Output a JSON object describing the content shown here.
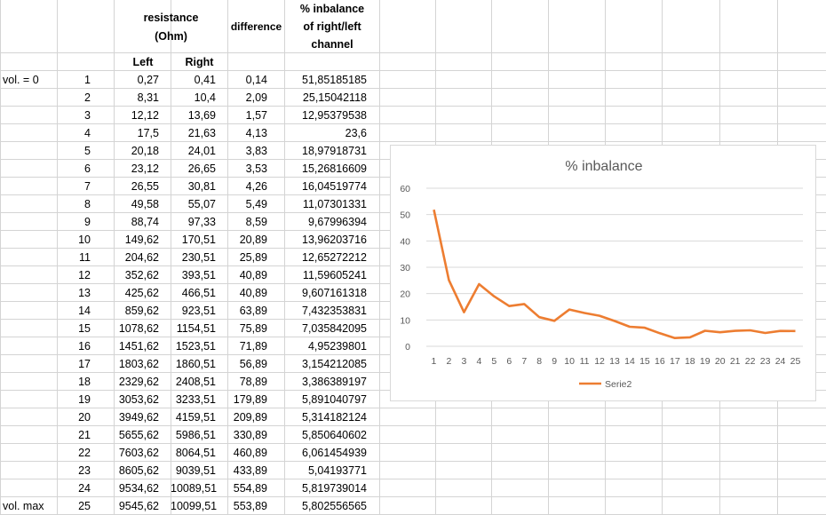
{
  "sheet": {
    "header": {
      "resistance": "resistance",
      "ohm": "(Ohm)",
      "difference": "difference",
      "inbalance1": "% inbalance",
      "inbalance2": "of right/left",
      "inbalance3": "channel",
      "left": "Left",
      "right": "Right"
    },
    "rows": [
      {
        "label": "vol. = 0",
        "n": "1",
        "left": "0,27",
        "right": "0,41",
        "diff": "0,14",
        "pct": "51,85185185"
      },
      {
        "label": "",
        "n": "2",
        "left": "8,31",
        "right": "10,4",
        "diff": "2,09",
        "pct": "25,15042118"
      },
      {
        "label": "",
        "n": "3",
        "left": "12,12",
        "right": "13,69",
        "diff": "1,57",
        "pct": "12,95379538"
      },
      {
        "label": "",
        "n": "4",
        "left": "17,5",
        "right": "21,63",
        "diff": "4,13",
        "pct": "23,6"
      },
      {
        "label": "",
        "n": "5",
        "left": "20,18",
        "right": "24,01",
        "diff": "3,83",
        "pct": "18,97918731"
      },
      {
        "label": "",
        "n": "6",
        "left": "23,12",
        "right": "26,65",
        "diff": "3,53",
        "pct": "15,26816609"
      },
      {
        "label": "",
        "n": "7",
        "left": "26,55",
        "right": "30,81",
        "diff": "4,26",
        "pct": "16,04519774"
      },
      {
        "label": "",
        "n": "8",
        "left": "49,58",
        "right": "55,07",
        "diff": "5,49",
        "pct": "11,07301331"
      },
      {
        "label": "",
        "n": "9",
        "left": "88,74",
        "right": "97,33",
        "diff": "8,59",
        "pct": "9,67996394"
      },
      {
        "label": "",
        "n": "10",
        "left": "149,62",
        "right": "170,51",
        "diff": "20,89",
        "pct": "13,96203716"
      },
      {
        "label": "",
        "n": "11",
        "left": "204,62",
        "right": "230,51",
        "diff": "25,89",
        "pct": "12,65272212"
      },
      {
        "label": "",
        "n": "12",
        "left": "352,62",
        "right": "393,51",
        "diff": "40,89",
        "pct": "11,59605241"
      },
      {
        "label": "",
        "n": "13",
        "left": "425,62",
        "right": "466,51",
        "diff": "40,89",
        "pct": "9,607161318"
      },
      {
        "label": "",
        "n": "14",
        "left": "859,62",
        "right": "923,51",
        "diff": "63,89",
        "pct": "7,432353831"
      },
      {
        "label": "",
        "n": "15",
        "left": "1078,62",
        "right": "1154,51",
        "diff": "75,89",
        "pct": "7,035842095"
      },
      {
        "label": "",
        "n": "16",
        "left": "1451,62",
        "right": "1523,51",
        "diff": "71,89",
        "pct": "4,95239801"
      },
      {
        "label": "",
        "n": "17",
        "left": "1803,62",
        "right": "1860,51",
        "diff": "56,89",
        "pct": "3,154212085"
      },
      {
        "label": "",
        "n": "18",
        "left": "2329,62",
        "right": "2408,51",
        "diff": "78,89",
        "pct": "3,386389197"
      },
      {
        "label": "",
        "n": "19",
        "left": "3053,62",
        "right": "3233,51",
        "diff": "179,89",
        "pct": "5,891040797"
      },
      {
        "label": "",
        "n": "20",
        "left": "3949,62",
        "right": "4159,51",
        "diff": "209,89",
        "pct": "5,314182124"
      },
      {
        "label": "",
        "n": "21",
        "left": "5655,62",
        "right": "5986,51",
        "diff": "330,89",
        "pct": "5,850640602"
      },
      {
        "label": "",
        "n": "22",
        "left": "7603,62",
        "right": "8064,51",
        "diff": "460,89",
        "pct": "6,061454939"
      },
      {
        "label": "",
        "n": "23",
        "left": "8605,62",
        "right": "9039,51",
        "diff": "433,89",
        "pct": "5,04193771"
      },
      {
        "label": "",
        "n": "24",
        "left": "9534,62",
        "right": "10089,51",
        "diff": "554,89",
        "pct": "5,819739014"
      },
      {
        "label": "vol. max",
        "n": "25",
        "left": "9545,62",
        "right": "10099,51",
        "diff": "553,89",
        "pct": "5,802556565"
      }
    ]
  },
  "chart_data": {
    "type": "line",
    "title": "% inbalance",
    "x": [
      1,
      2,
      3,
      4,
      5,
      6,
      7,
      8,
      9,
      10,
      11,
      12,
      13,
      14,
      15,
      16,
      17,
      18,
      19,
      20,
      21,
      22,
      23,
      24,
      25
    ],
    "series": [
      {
        "name": "Serie2",
        "values": [
          51.85,
          25.15,
          12.95,
          23.6,
          18.98,
          15.27,
          16.05,
          11.07,
          9.68,
          13.96,
          12.65,
          11.6,
          9.61,
          7.43,
          7.04,
          4.95,
          3.15,
          3.39,
          5.89,
          5.31,
          5.85,
          6.06,
          5.04,
          5.82,
          5.8
        ]
      }
    ],
    "ylim": [
      0,
      60
    ],
    "yticks": [
      "0",
      "10",
      "20",
      "30",
      "40",
      "50",
      "60"
    ],
    "xticks": [
      "1",
      "2",
      "3",
      "4",
      "5",
      "6",
      "7",
      "8",
      "9",
      "10",
      "11",
      "12",
      "13",
      "14",
      "15",
      "16",
      "17",
      "18",
      "19",
      "20",
      "21",
      "22",
      "23",
      "24",
      "25"
    ],
    "legend": "bottom",
    "grid": true,
    "color": "#ed7d31"
  }
}
